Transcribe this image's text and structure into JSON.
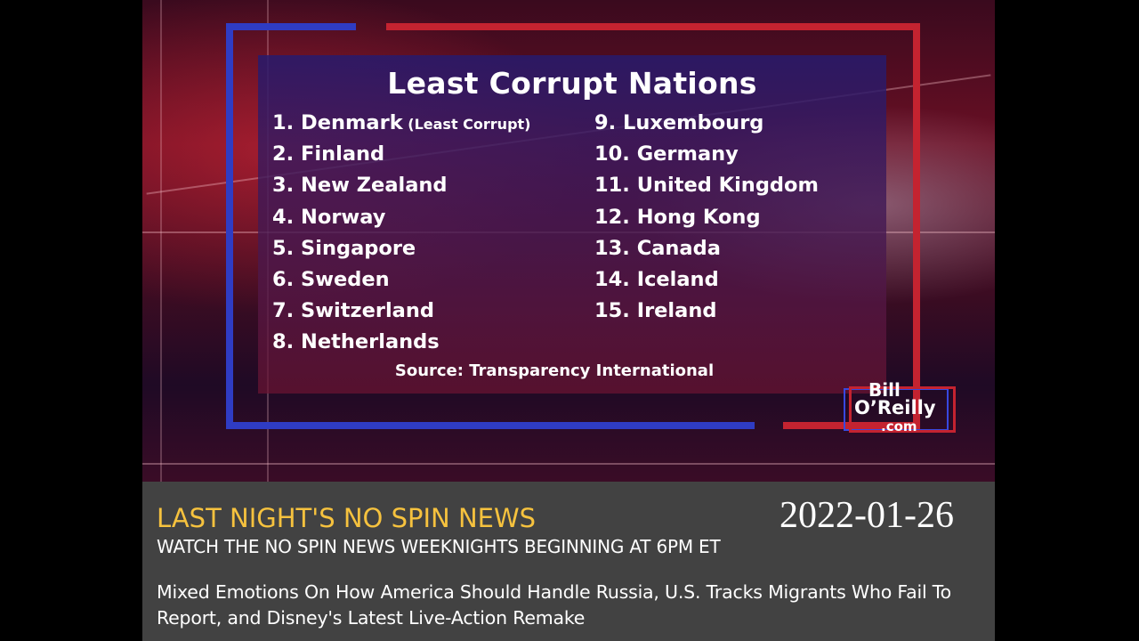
{
  "graphic": {
    "title": "Least Corrupt Nations",
    "rankings_left": [
      {
        "text": "1. Denmark",
        "note": "(Least Corrupt)"
      },
      {
        "text": "2. Finland"
      },
      {
        "text": "3. New Zealand"
      },
      {
        "text": "4. Norway"
      },
      {
        "text": "5. Singapore"
      },
      {
        "text": "6. Sweden"
      },
      {
        "text": "7. Switzerland"
      },
      {
        "text": "8. Netherlands"
      }
    ],
    "rankings_right": [
      {
        "text": "9. Luxembourg"
      },
      {
        "text": "10. Germany"
      },
      {
        "text": "11. United Kingdom"
      },
      {
        "text": "12. Hong Kong"
      },
      {
        "text": "13. Canada"
      },
      {
        "text": "14. Iceland"
      },
      {
        "text": "15. Ireland"
      }
    ],
    "source": "Source: Transparency International",
    "logo": {
      "line1": "Bill",
      "line2": "O’Reilly",
      "line3": ".com"
    }
  },
  "banner": {
    "headline": "LAST NIGHT'S NO SPIN NEWS",
    "subline": "WATCH THE NO SPIN NEWS WEEKNIGHTS BEGINNING AT 6PM ET",
    "summary": "Mixed Emotions On How America Should Handle Russia, U.S. Tracks Migrants Who Fail To Report, and Disney's Latest Live-Action Remake",
    "date": "2022-01-26"
  },
  "colors": {
    "headline": "#f6c23e",
    "banner_bg": "#424242",
    "frame_blue": "#2f3cc4",
    "frame_red": "#c42330"
  }
}
